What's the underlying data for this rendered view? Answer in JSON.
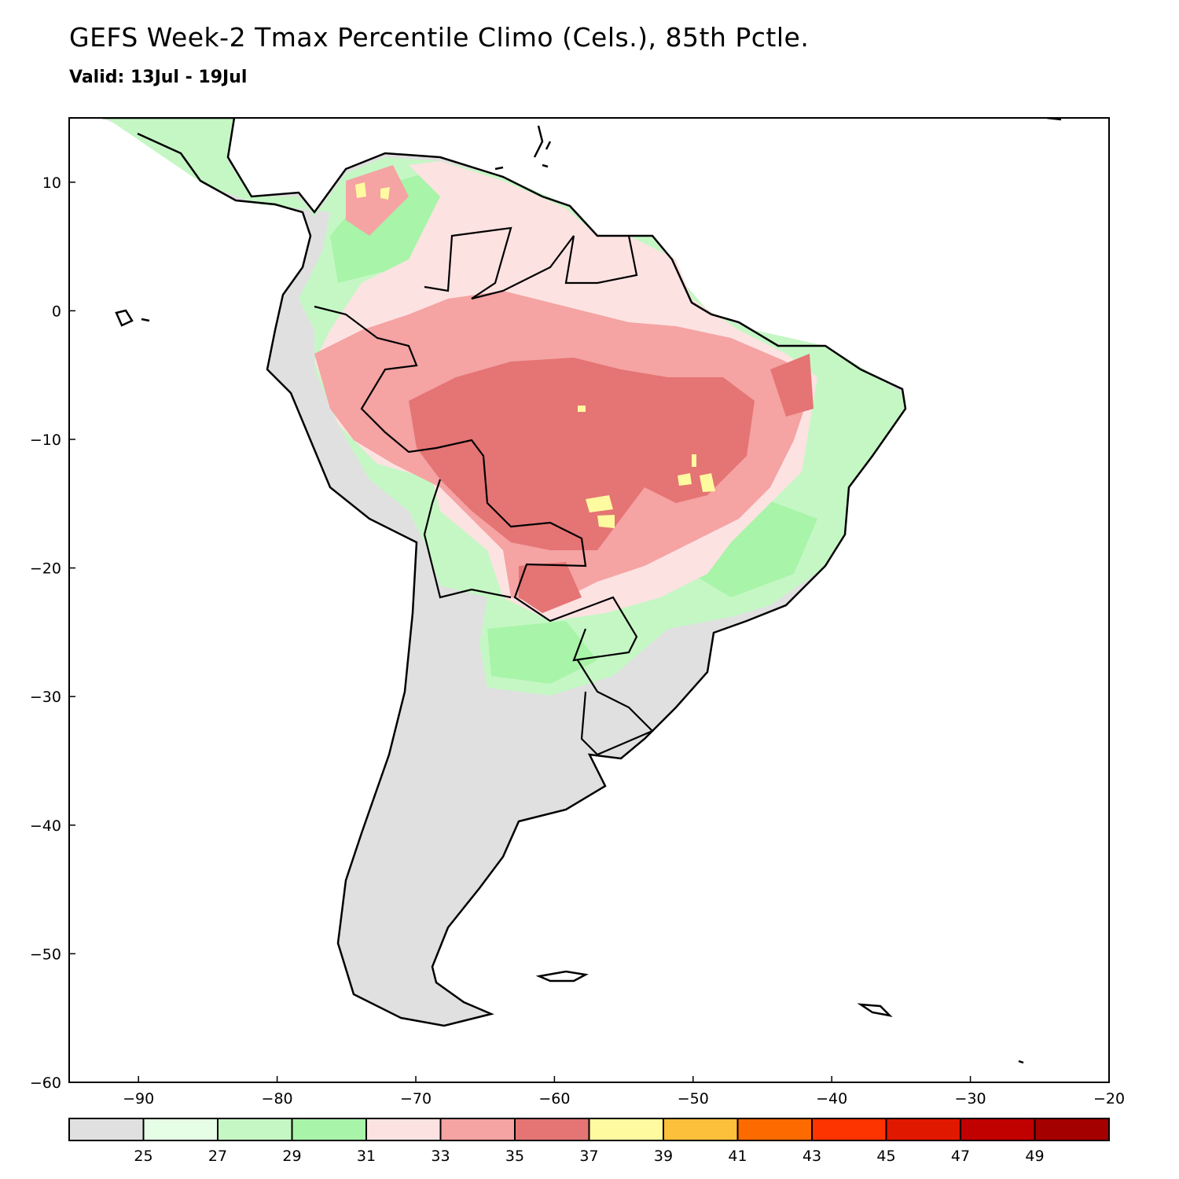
{
  "title": "GEFS Week-2 Tmax Percentile Climo (Cels.), 85th Pctle.",
  "subtitle": "Valid: 13Jul - 19Jul",
  "map": {
    "region": "South America",
    "lon_range": [
      -95,
      -20
    ],
    "lat_range": [
      -60,
      15
    ],
    "lon_ticks": [
      -90,
      -80,
      -70,
      -60,
      -50,
      -40,
      -30,
      -20
    ],
    "lat_ticks": [
      10,
      0,
      -10,
      -20,
      -30,
      -40,
      -50,
      -60
    ],
    "lon_tick_labels": [
      "−90",
      "−80",
      "−70",
      "−60",
      "−50",
      "−40",
      "−30",
      "−20"
    ],
    "lat_tick_labels": [
      "10",
      "0",
      "−10",
      "−20",
      "−30",
      "−40",
      "−50",
      "−60"
    ],
    "ocean_color": "#ffffff",
    "coastline_color": "#000000"
  },
  "colorbar": {
    "labels": [
      "25",
      "27",
      "29",
      "31",
      "33",
      "35",
      "37",
      "39",
      "41",
      "43",
      "45",
      "47",
      "49"
    ],
    "colors": [
      "#e0e0e0",
      "#e6fde6",
      "#c5f7c5",
      "#a8f4a8",
      "#fde2e2",
      "#f5a3a3",
      "#e57474",
      "#fefaa0",
      "#fdc03a",
      "#fd6a00",
      "#fd3300",
      "#e01800",
      "#c10000",
      "#a50000"
    ]
  }
}
